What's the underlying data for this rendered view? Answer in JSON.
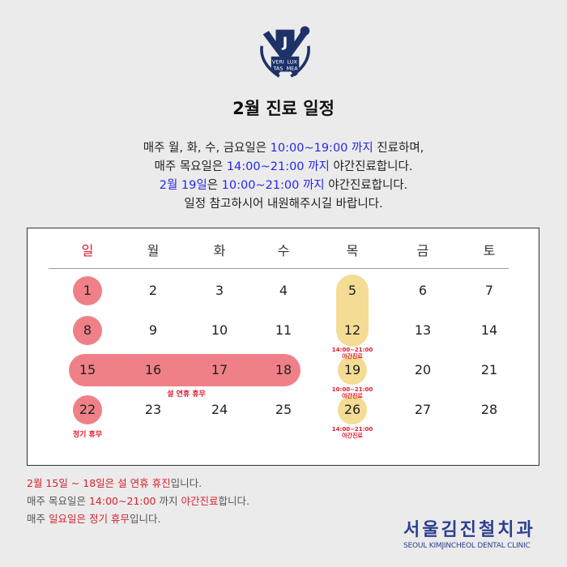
{
  "logo": {
    "text": [
      "VERI",
      "LUX",
      "TAS",
      "MEA"
    ],
    "color": "#1e3269"
  },
  "title": "2월 진료 일정",
  "intro": [
    [
      {
        "t": "매주 월, 화, 수, 금요일은 "
      },
      {
        "t": "10:00~19:00 까지",
        "c": "blue"
      },
      {
        "t": " 진료하며,"
      }
    ],
    [
      {
        "t": "매주 목요일은 "
      },
      {
        "t": "14:00~21:00 까지",
        "c": "blue"
      },
      {
        "t": " 야간진료합니다."
      }
    ],
    [
      {
        "t": "2월 19일",
        "c": "blue"
      },
      {
        "t": "은 "
      },
      {
        "t": "10:00~21:00 까지",
        "c": "blue"
      },
      {
        "t": " 야간진료합니다."
      }
    ],
    [
      {
        "t": "일정 참고하시어 내원해주시길 바랍니다."
      }
    ]
  ],
  "calendar": {
    "weekdays": [
      "일",
      "월",
      "화",
      "수",
      "목",
      "금",
      "토"
    ],
    "weeks": [
      [
        "1",
        "2",
        "3",
        "4",
        "5",
        "6",
        "7"
      ],
      [
        "8",
        "9",
        "10",
        "11",
        "12",
        "13",
        "14"
      ],
      [
        "15",
        "16",
        "17",
        "18",
        "19",
        "20",
        "21"
      ],
      [
        "22",
        "23",
        "24",
        "25",
        "26",
        "27",
        "28"
      ]
    ],
    "notes": {
      "thu_12": [
        "14:00~21:00",
        "야간진료"
      ],
      "thu_19": [
        "10:00~21:00",
        "야간진료"
      ],
      "thu_26": [
        "14:00~21:00",
        "야간진료"
      ]
    },
    "holiday_label": "설 연휴 휴무",
    "sunday_label": "정기 휴무",
    "colors": {
      "holiday": "#f08088",
      "night": "#f4dc94",
      "accent": "#e0182c"
    }
  },
  "footer": [
    [
      {
        "t": "2월 15일 ~ 18일은 설 연휴 휴진",
        "c": "red"
      },
      {
        "t": "입니다."
      }
    ],
    [
      {
        "t": "매주 목요일은 "
      },
      {
        "t": "14:00~21:00",
        "c": "red"
      },
      {
        "t": " 까지 "
      },
      {
        "t": "야간진료",
        "c": "red"
      },
      {
        "t": "합니다."
      }
    ],
    [
      {
        "t": "매주 "
      },
      {
        "t": "일요일은 정기 휴무",
        "c": "red"
      },
      {
        "t": "입니다."
      }
    ]
  ],
  "brand": {
    "ko": "서울김진철치과",
    "en": "SEOUL KIMJINCHEOL DENTAL CLINIC"
  }
}
